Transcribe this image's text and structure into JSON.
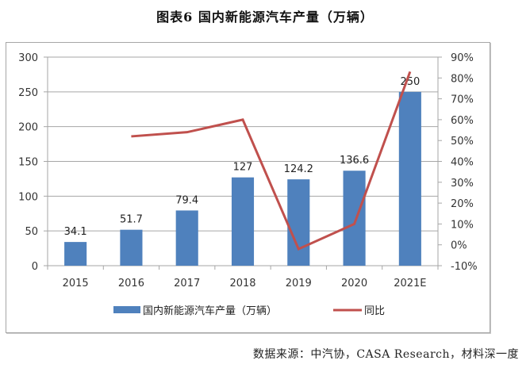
{
  "title": "图表6  国内新能源汽车产量（万辆）",
  "source": "数据来源：中汽协，CASA Research，材料深一度",
  "colors": {
    "bar": "#4f81bd",
    "line": "#c0504d",
    "grid": "#a6a6a6"
  },
  "chart_data": {
    "type": "bar",
    "title": "图表6  国内新能源汽车产量（万辆）",
    "categories": [
      "2015",
      "2016",
      "2017",
      "2018",
      "2019",
      "2020",
      "2021E"
    ],
    "series": [
      {
        "name": "国内新能源汽车产量（万辆）",
        "type": "bar",
        "axis": "left",
        "values": [
          34.1,
          51.7,
          79.4,
          127,
          124.2,
          136.6,
          250
        ],
        "labels": [
          "34.1",
          "51.7",
          "79.4",
          "127",
          "124.2",
          "136.6",
          "250"
        ]
      },
      {
        "name": "同比",
        "type": "line",
        "axis": "right",
        "values": [
          null,
          52,
          54,
          60,
          -2,
          10,
          83
        ]
      }
    ],
    "y_left": {
      "min": 0,
      "max": 300,
      "step": 50,
      "ticks": [
        "0",
        "50",
        "100",
        "150",
        "200",
        "250",
        "300"
      ]
    },
    "y_right": {
      "min": -10,
      "max": 90,
      "step": 10,
      "ticks": [
        "-10%",
        "0%",
        "10%",
        "20%",
        "30%",
        "40%",
        "50%",
        "60%",
        "70%",
        "80%",
        "90%"
      ]
    },
    "xlabel": "",
    "ylabel": "",
    "grid": true,
    "legend": {
      "position": "bottom",
      "entries": [
        "国内新能源汽车产量（万辆）",
        "同比"
      ]
    }
  }
}
